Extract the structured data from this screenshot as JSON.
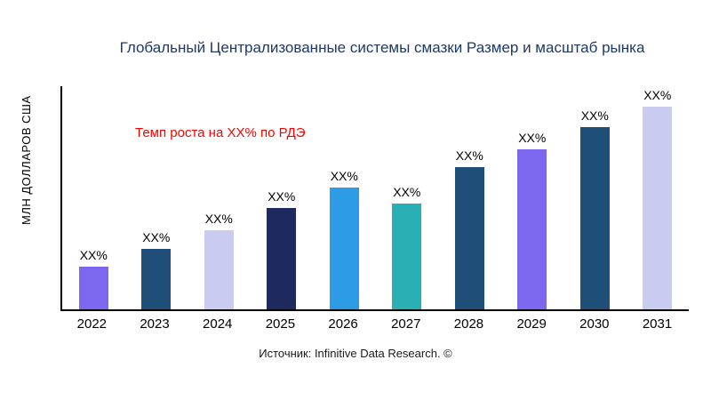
{
  "chart_data": {
    "type": "bar",
    "title": "Глобальный Централизованные системы смазки Размер и масштаб рынка",
    "ylabel": "МЛН ДОЛЛАРОВ США",
    "xlabel": "",
    "annotation": "Темп роста на XX% по РДЭ",
    "annotation_color": "#ff0000",
    "categories": [
      "2022",
      "2023",
      "2024",
      "2025",
      "2026",
      "2027",
      "2028",
      "2029",
      "2030",
      "2031"
    ],
    "values": [
      21,
      30,
      39,
      50,
      60,
      52,
      70,
      79,
      90,
      100
    ],
    "bar_labels": [
      "XX%",
      "XX%",
      "XX%",
      "XX%",
      "XX%",
      "XX%",
      "XX%",
      "XX%",
      "XX%",
      "XX%"
    ],
    "colors": [
      "#7b68ee",
      "#1f4e79",
      "#c9cbf0",
      "#1e2a5e",
      "#2d9be5",
      "#2ab0b4",
      "#1f4e79",
      "#7b68ee",
      "#1f4e79",
      "#c9cbf0"
    ],
    "ylim": [
      0,
      110
    ],
    "grid": false,
    "legend": "none",
    "title_color": "#1f3864"
  },
  "footer": {
    "source": "Источник: Infinitive Data Research. ©"
  }
}
